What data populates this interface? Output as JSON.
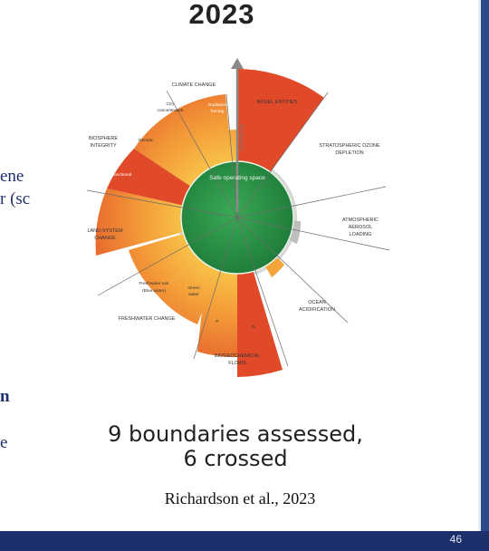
{
  "slide": {
    "title": "2023",
    "left_fragments": [
      "ene",
      "r (sc",
      "n",
      "e"
    ],
    "summary_line1": "9 boundaries assessed,",
    "summary_line2": "6 crossed",
    "citation": "Richardson et al., 2023",
    "page_number": "46"
  },
  "diagram": {
    "center_label": "Safe operating space",
    "axis_label": "Increasing risk",
    "boundary_labels": {
      "climate": "CLIMATE CHANGE",
      "novel": "NOVEL ENTITIES",
      "ozone_1": "STRATOSPHERIC OZONE",
      "ozone_2": "DEPLETION",
      "aerosol_1": "ATMOSPHERIC",
      "aerosol_2": "AEROSOL",
      "aerosol_3": "LOADING",
      "ocean_1": "OCEAN",
      "ocean_2": "ACIDIFICATION",
      "biogeo_1": "BIOGEOCHEMICAL",
      "biogeo_2": "FLOWS",
      "freshwater": "FRESHWATER CHANGE",
      "land_1": "LAND-SYSTEM",
      "land_2": "CHANGE",
      "biosphere_1": "BIOSPHERE",
      "biosphere_2": "INTEGRITY"
    },
    "sub_labels": {
      "co2_1": "CO₂",
      "co2_2": "concentration",
      "radiative_1": "Radiative",
      "radiative_2": "forcing",
      "genetic": "Genetic",
      "functional": "Functional",
      "blue_1": "Freshwater use",
      "blue_2": "(Blue water)",
      "green_1": "Green",
      "green_2": "water",
      "p": "P",
      "n": "N"
    },
    "colors": {
      "safe": "#2e9a47",
      "zone": "#f6a43c",
      "high_risk": "#de4726",
      "unassessed": "#c9c9c9"
    }
  }
}
